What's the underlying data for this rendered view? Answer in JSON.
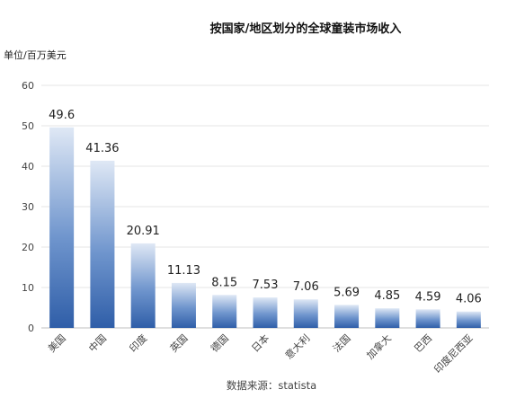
{
  "chart_data": {
    "type": "bar",
    "title": "按国家/地区划分的全球童装市场收入",
    "unit_label": "单位/百万美元",
    "categories": [
      "美国",
      "中国",
      "印度",
      "英国",
      "德国",
      "日本",
      "意大利",
      "法国",
      "加拿大",
      "巴西",
      "印度尼西亚"
    ],
    "values": [
      49.6,
      41.36,
      20.91,
      11.13,
      8.15,
      7.53,
      7.06,
      5.69,
      4.85,
      4.59,
      4.06
    ],
    "value_labels": [
      "49.6",
      "41.36",
      "20.91",
      "11.13",
      "8.15",
      "7.53",
      "7.06",
      "5.69",
      "4.85",
      "4.59",
      "4.06"
    ],
    "yticks": [
      "0",
      "10",
      "20",
      "30",
      "40",
      "50",
      "60"
    ],
    "ylim": [
      0,
      60
    ],
    "grid": true,
    "source": "数据来源：statista",
    "colors": {
      "bar_top": "#dfe8f5",
      "bar_bottom": "#2f5ea8",
      "grid": "#e6e6e6"
    }
  }
}
